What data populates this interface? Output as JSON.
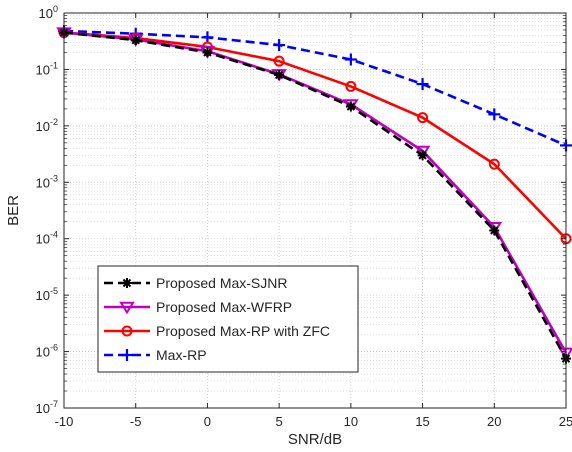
{
  "chart_data": {
    "type": "line",
    "xlabel": "SNR/dB",
    "ylabel": "BER",
    "x_scale": "linear",
    "y_scale": "log",
    "xlim": [
      -10,
      25
    ],
    "ylim": [
      1e-07,
      1
    ],
    "x_ticks": [
      -10,
      -5,
      0,
      5,
      10,
      15,
      20,
      25
    ],
    "x_tick_labels": [
      "-10",
      "-5",
      "0",
      "5",
      "10",
      "15",
      "20",
      "25"
    ],
    "y_ticks": [
      1e-07,
      1e-06,
      1e-05,
      0.0001,
      0.001,
      0.01,
      0.1,
      1
    ],
    "y_tick_labels": [
      {
        "base": "10",
        "exp": "-7"
      },
      {
        "base": "10",
        "exp": "-6"
      },
      {
        "base": "10",
        "exp": "-5"
      },
      {
        "base": "10",
        "exp": "-4"
      },
      {
        "base": "10",
        "exp": "-3"
      },
      {
        "base": "10",
        "exp": "-2"
      },
      {
        "base": "10",
        "exp": "-1"
      },
      {
        "base": "10",
        "exp": "0"
      }
    ],
    "grid": true,
    "minor_grid": true,
    "legend_position": "bottom-left",
    "x": [
      -10,
      -5,
      0,
      5,
      10,
      15,
      20,
      25
    ],
    "series": [
      {
        "name": "Proposed Max-SJNR",
        "color": "#000000",
        "line_style": "dashed",
        "marker": "asterisk",
        "values": [
          0.45,
          0.33,
          0.2,
          0.08,
          0.022,
          0.003,
          0.00014,
          7.5e-07
        ]
      },
      {
        "name": "Proposed Max-WFRP",
        "color": "#bf00bf",
        "line_style": "solid",
        "marker": "triangle-down",
        "values": [
          0.45,
          0.34,
          0.21,
          0.082,
          0.024,
          0.0036,
          0.00016,
          9.5e-07
        ]
      },
      {
        "name": "Proposed Max-RP with ZFC",
        "color": "#ff0000",
        "line_style": "solid",
        "marker": "circle",
        "values": [
          0.45,
          0.36,
          0.25,
          0.14,
          0.05,
          0.014,
          0.0021,
          0.0001
        ]
      },
      {
        "name": "Max-RP",
        "color": "#0000ff",
        "line_style": "dashed",
        "marker": "plus",
        "values": [
          0.48,
          0.43,
          0.37,
          0.27,
          0.15,
          0.055,
          0.016,
          0.0045
        ]
      }
    ]
  }
}
